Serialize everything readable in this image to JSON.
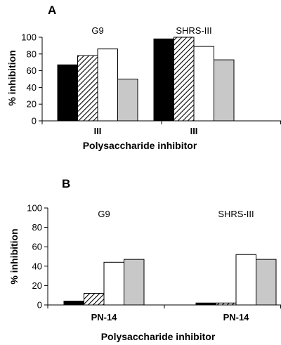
{
  "chart_data": [
    {
      "panel": "A",
      "type": "bar",
      "categories": [
        "III",
        "III"
      ],
      "group_labels": [
        "G9",
        "SHRS-III"
      ],
      "series": [
        {
          "values": [
            67,
            98
          ],
          "color": "#000000",
          "pattern": "solid"
        },
        {
          "values": [
            78,
            100
          ],
          "color": "#000000",
          "pattern": "hatched"
        },
        {
          "values": [
            86,
            89
          ],
          "color": "#ffffff",
          "pattern": "solid"
        },
        {
          "values": [
            50,
            73
          ],
          "color": "#c8c8c8",
          "pattern": "solid"
        }
      ],
      "xlabel": "Polysaccharide inhibitor",
      "ylabel": "% inhibition",
      "ylim": [
        0,
        100
      ],
      "yticks": [
        "0",
        "20",
        "40",
        "60",
        "80",
        "100"
      ],
      "grid": false
    },
    {
      "panel": "B",
      "type": "bar",
      "categories": [
        "PN-14",
        "PN-14"
      ],
      "group_labels": [
        "G9",
        "SHRS-III"
      ],
      "series": [
        {
          "values": [
            4,
            2
          ],
          "color": "#000000",
          "pattern": "solid"
        },
        {
          "values": [
            12,
            2
          ],
          "color": "#000000",
          "pattern": "hatched"
        },
        {
          "values": [
            44,
            52
          ],
          "color": "#ffffff",
          "pattern": "solid"
        },
        {
          "values": [
            47,
            47
          ],
          "color": "#c8c8c8",
          "pattern": "solid"
        }
      ],
      "xlabel": "Polysaccharide inhibitor",
      "ylabel": "% inhibition",
      "ylim": [
        0,
        100
      ],
      "yticks": [
        "0",
        "20",
        "40",
        "60",
        "80",
        "100"
      ],
      "grid": false
    }
  ]
}
